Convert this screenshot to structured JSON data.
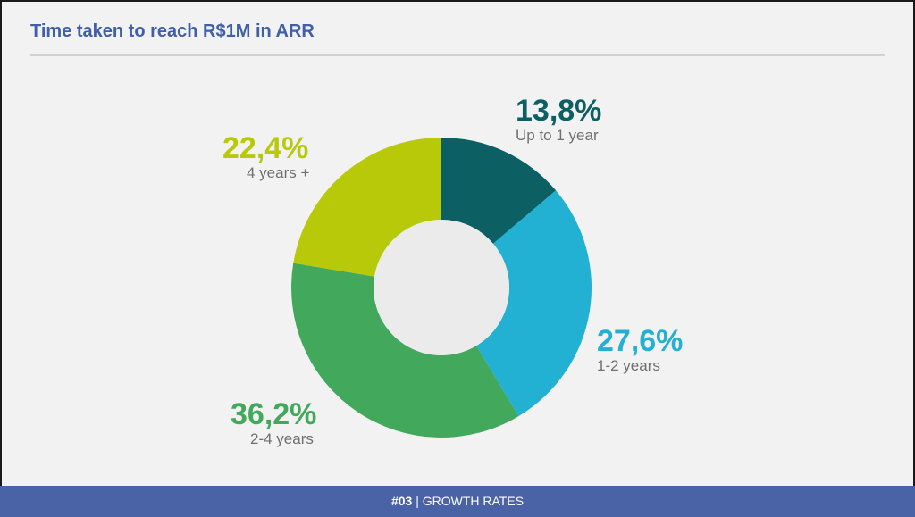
{
  "title": "Time taken to reach R$1M in ARR",
  "footer": {
    "number": "#03",
    "section": "GROWTH RATES"
  },
  "colors": {
    "title": "#3f5fa8",
    "footer_bg": "#4a62a6",
    "up_to_1_year": "#0c5f63",
    "1_2_years": "#22b0d3",
    "2_4_years": "#41a85c",
    "4_years_plus": "#b8c90a"
  },
  "chart_data": {
    "type": "pie",
    "donut": true,
    "title": "Time taken to reach R$1M in ARR",
    "categories": [
      "Up to 1 year",
      "1-2 years",
      "2-4 years",
      "4 years +"
    ],
    "values": [
      13.8,
      27.6,
      36.2,
      22.4
    ],
    "value_labels": [
      "13,8%",
      "27,6%",
      "36,2%",
      "22,4%"
    ],
    "colors": [
      "#0c5f63",
      "#22b0d3",
      "#41a85c",
      "#b8c90a"
    ],
    "start": "top, clockwise",
    "legend": "none (direct labels)"
  }
}
